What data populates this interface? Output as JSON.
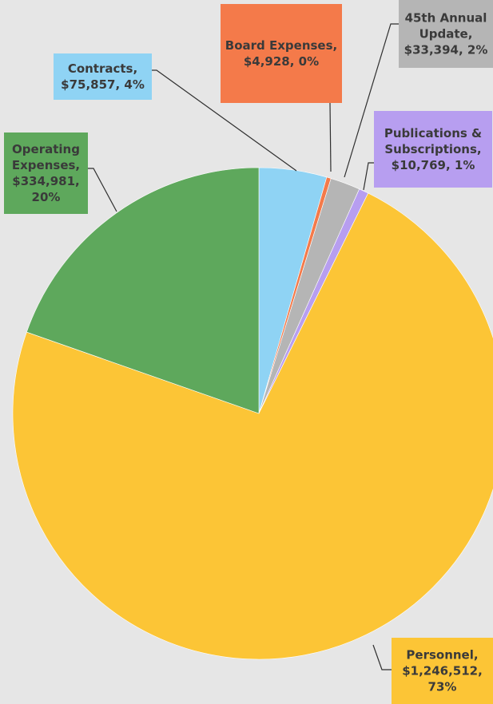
{
  "chart_data": {
    "type": "pie",
    "title": "",
    "slices": [
      {
        "key": "contracts",
        "lines": [
          "Contracts,",
          "$75,857, 4%"
        ],
        "value": 75857,
        "percent": 4,
        "color": "#8fd3f4"
      },
      {
        "key": "board",
        "lines": [
          "Board Expenses,",
          "$4,928, 0%"
        ],
        "value": 4928,
        "percent": 0,
        "color": "#f47a4a"
      },
      {
        "key": "annual",
        "lines": [
          "45th Annual",
          "Update,",
          "$33,394, 2%"
        ],
        "value": 33394,
        "percent": 2,
        "color": "#b5b5b5"
      },
      {
        "key": "publications",
        "lines": [
          "Publications &",
          "Subscriptions,",
          "$10,769, 1%"
        ],
        "value": 10769,
        "percent": 1,
        "color": "#b79ef0"
      },
      {
        "key": "personnel",
        "lines": [
          "Personnel,",
          "$1,246,512,",
          "73%"
        ],
        "value": 1246512,
        "percent": 73,
        "color": "#fcc536"
      },
      {
        "key": "operating",
        "lines": [
          "Operating",
          "Expenses,",
          "$334,981,",
          "20%"
        ],
        "value": 334981,
        "percent": 20,
        "color": "#5ea85c"
      }
    ],
    "start": "12 o'clock",
    "direction": "clockwise",
    "legend": "none",
    "data_labels": "callout boxes with leader lines"
  }
}
